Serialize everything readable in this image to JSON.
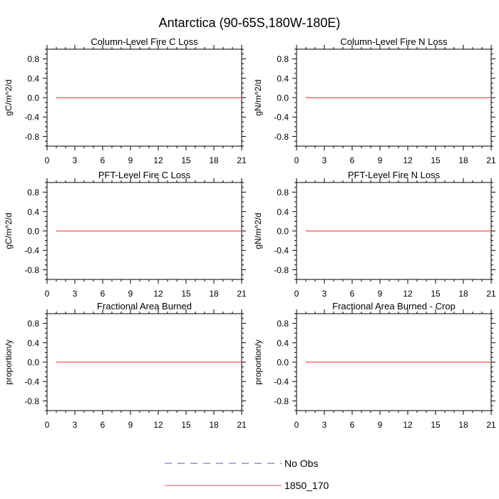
{
  "figure_title": "Antarctica (90-65S,180W-180E)",
  "legend": {
    "entries": [
      {
        "label": "No Obs",
        "color": "#5a5aa6",
        "style": "dashed"
      },
      {
        "label": "1850_170",
        "color": "#ff6b6b",
        "style": "solid"
      }
    ]
  },
  "chart_data": [
    {
      "type": "line",
      "title": "Column-Level Fire C Loss",
      "ylabel": "gC/m^2/d",
      "xlim": [
        0,
        21
      ],
      "ylim": [
        -1,
        1
      ],
      "xticks": [
        0,
        3,
        6,
        9,
        12,
        15,
        18,
        21
      ],
      "yticks": [
        0.8,
        0.4,
        0.0,
        -0.4,
        -0.8
      ],
      "ytick_labels": [
        "0.8",
        "0.4",
        "0.0",
        "-0.4",
        "-0.8"
      ],
      "series": [
        {
          "name": "1850_170",
          "color": "#ff6b6b",
          "x": [
            1,
            21
          ],
          "y": [
            0,
            0
          ]
        }
      ]
    },
    {
      "type": "line",
      "title": "Column-Level Fire N Loss",
      "ylabel": "gN/m^2/d",
      "xlim": [
        0,
        21
      ],
      "ylim": [
        -1,
        1
      ],
      "xticks": [
        0,
        3,
        6,
        9,
        12,
        15,
        18,
        21
      ],
      "yticks": [
        0.8,
        0.4,
        0.0,
        -0.4,
        -0.8
      ],
      "ytick_labels": [
        "0.8",
        "0.4",
        "0.0",
        "-0.4",
        "-0.8"
      ],
      "series": [
        {
          "name": "1850_170",
          "color": "#ff6b6b",
          "x": [
            1,
            21
          ],
          "y": [
            0,
            0
          ]
        }
      ]
    },
    {
      "type": "line",
      "title": "PFT-Level Fire C Loss",
      "ylabel": "gC/m^2/d",
      "xlim": [
        0,
        21
      ],
      "ylim": [
        -1,
        1
      ],
      "xticks": [
        0,
        3,
        6,
        9,
        12,
        15,
        18,
        21
      ],
      "yticks": [
        0.8,
        0.4,
        0.0,
        -0.4,
        -0.8
      ],
      "ytick_labels": [
        "0.8",
        "0.4",
        "0.0",
        "-0.4",
        "-0.8"
      ],
      "series": [
        {
          "name": "1850_170",
          "color": "#ff6b6b",
          "x": [
            1,
            21
          ],
          "y": [
            0,
            0
          ]
        }
      ]
    },
    {
      "type": "line",
      "title": "PFT-Level Fire N Loss",
      "ylabel": "gN/m^2/d",
      "xlim": [
        0,
        21
      ],
      "ylim": [
        -1,
        1
      ],
      "xticks": [
        0,
        3,
        6,
        9,
        12,
        15,
        18,
        21
      ],
      "yticks": [
        0.8,
        0.4,
        0.0,
        -0.4,
        -0.8
      ],
      "ytick_labels": [
        "0.8",
        "0.4",
        "0.0",
        "-0.4",
        "-0.8"
      ],
      "series": [
        {
          "name": "1850_170",
          "color": "#ff6b6b",
          "x": [
            1,
            21
          ],
          "y": [
            0,
            0
          ]
        }
      ]
    },
    {
      "type": "line",
      "title": "Fractional Area Burned",
      "ylabel": "proportion/y",
      "xlim": [
        0,
        21
      ],
      "ylim": [
        -1,
        1
      ],
      "xticks": [
        0,
        3,
        6,
        9,
        12,
        15,
        18,
        21
      ],
      "yticks": [
        0.8,
        0.4,
        0.0,
        -0.4,
        -0.8
      ],
      "ytick_labels": [
        "0.8",
        "0.4",
        "0.0",
        "-0.4",
        "-0.8"
      ],
      "series": [
        {
          "name": "1850_170",
          "color": "#ff6b6b",
          "x": [
            1,
            21
          ],
          "y": [
            0,
            0
          ]
        }
      ]
    },
    {
      "type": "line",
      "title": "Fractional Area Burned - Crop",
      "ylabel": "proportion/y",
      "xlim": [
        0,
        21
      ],
      "ylim": [
        -1,
        1
      ],
      "xticks": [
        0,
        3,
        6,
        9,
        12,
        15,
        18,
        21
      ],
      "yticks": [
        0.8,
        0.4,
        0.0,
        -0.4,
        -0.8
      ],
      "ytick_labels": [
        "0.8",
        "0.4",
        "0.0",
        "-0.4",
        "-0.8"
      ],
      "series": [
        {
          "name": "1850_170",
          "color": "#ff6b6b",
          "x": [
            1,
            21
          ],
          "y": [
            0,
            0
          ]
        }
      ]
    }
  ]
}
